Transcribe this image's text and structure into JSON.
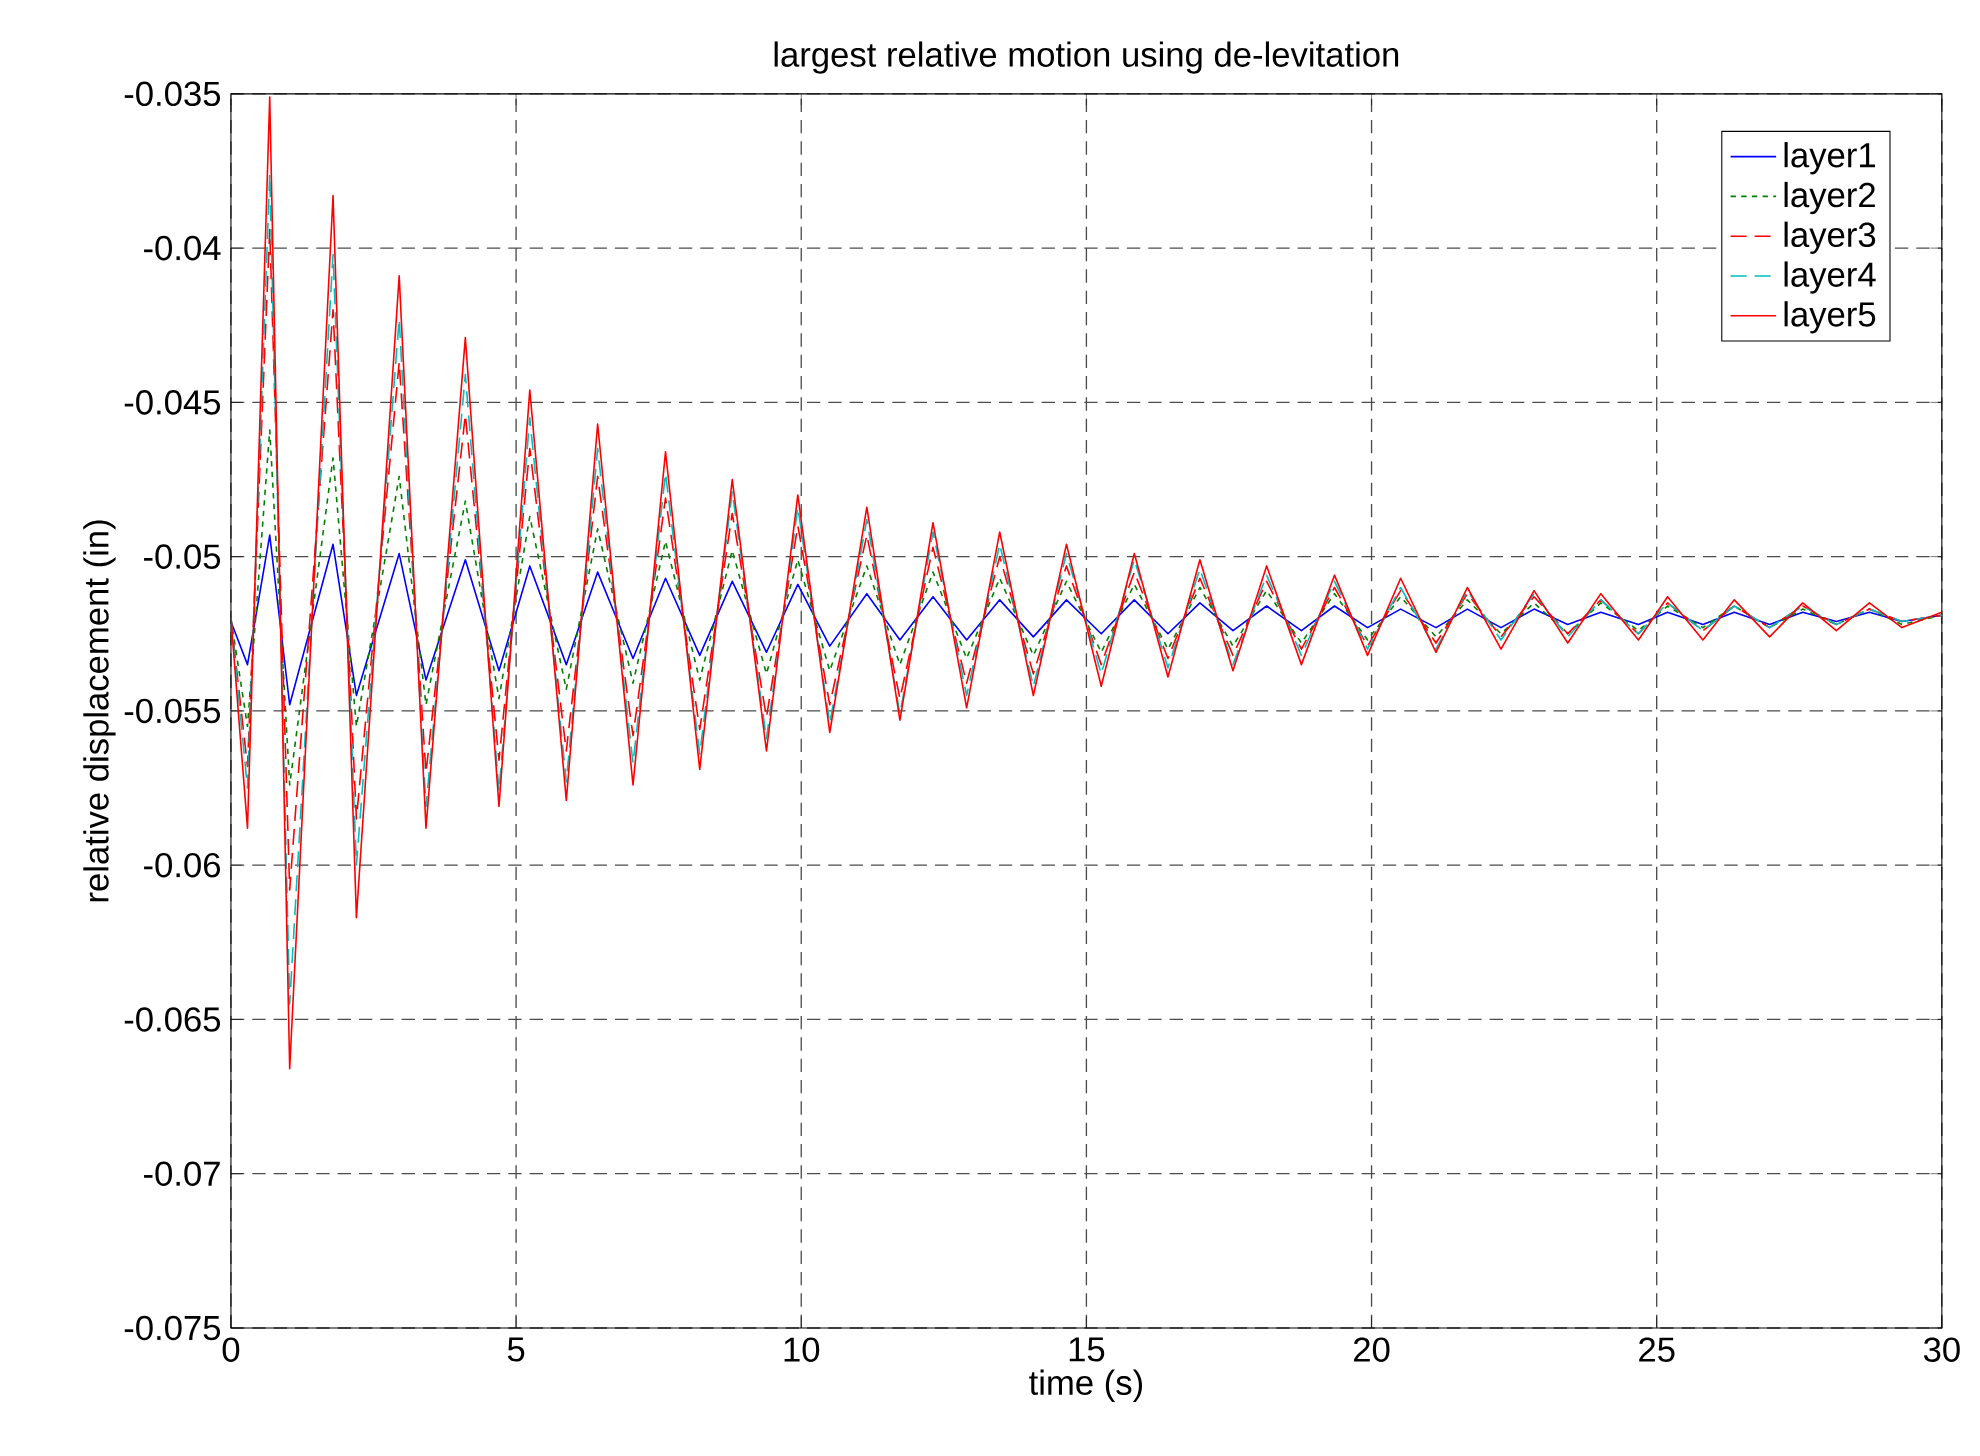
{
  "chart_data": {
    "type": "line",
    "title": "largest relative motion using de-levitation",
    "xlabel": "time (s)",
    "ylabel": "relative displacement (in)",
    "x": [
      0,
      0.29,
      0.68,
      1.03,
      1.79,
      2.2,
      2.95,
      3.42,
      4.11,
      4.7,
      5.24,
      5.88,
      6.43,
      7.05,
      7.62,
      8.22,
      8.79,
      9.39,
      9.94,
      10.5,
      11.15,
      11.73,
      12.31,
      12.9,
      13.48,
      14.07,
      14.65,
      15.26,
      15.84,
      16.43,
      16.99,
      17.57,
      18.16,
      18.77,
      19.35,
      19.93,
      20.51,
      21.13,
      21.68,
      22.27,
      22.85,
      23.44,
      24.02,
      24.68,
      25.19,
      25.81,
      26.36,
      26.98,
      27.56,
      28.15,
      28.73,
      29.3,
      30
    ],
    "series": [
      {
        "name": "layer1",
        "color": "#0000ff",
        "line_style": "solid",
        "values": [
          -0.0521,
          -0.0535,
          -0.0493,
          -0.0548,
          -0.0496,
          -0.0545,
          -0.0499,
          -0.054,
          -0.0501,
          -0.0537,
          -0.0503,
          -0.0535,
          -0.0505,
          -0.0533,
          -0.0507,
          -0.0532,
          -0.0508,
          -0.0531,
          -0.0509,
          -0.0529,
          -0.0512,
          -0.0527,
          -0.0513,
          -0.0527,
          -0.0514,
          -0.0526,
          -0.0514,
          -0.0525,
          -0.0514,
          -0.0525,
          -0.0515,
          -0.0524,
          -0.0516,
          -0.0524,
          -0.0516,
          -0.0523,
          -0.0517,
          -0.0523,
          -0.0517,
          -0.0523,
          -0.0517,
          -0.0522,
          -0.0518,
          -0.0522,
          -0.0518,
          -0.0522,
          -0.0518,
          -0.0522,
          -0.0518,
          -0.0521,
          -0.0518,
          -0.0521,
          -0.0519
        ]
      },
      {
        "name": "layer2",
        "color": "#008000",
        "line_style": "dotted",
        "values": [
          -0.052,
          -0.0555,
          -0.0459,
          -0.0574,
          -0.0468,
          -0.0555,
          -0.0474,
          -0.0548,
          -0.0482,
          -0.0546,
          -0.0487,
          -0.0543,
          -0.0491,
          -0.0541,
          -0.0495,
          -0.054,
          -0.0498,
          -0.0538,
          -0.0501,
          -0.0537,
          -0.0503,
          -0.0535,
          -0.0505,
          -0.0533,
          -0.0507,
          -0.0532,
          -0.0508,
          -0.0531,
          -0.0509,
          -0.053,
          -0.051,
          -0.0529,
          -0.0511,
          -0.0528,
          -0.0512,
          -0.0527,
          -0.0513,
          -0.0526,
          -0.0514,
          -0.0525,
          -0.0515,
          -0.0525,
          -0.0515,
          -0.0524,
          -0.0516,
          -0.0523,
          -0.0516,
          -0.0523,
          -0.0517,
          -0.0522,
          -0.0517,
          -0.0522,
          -0.0519
        ]
      },
      {
        "name": "layer3",
        "color": "#ff0000",
        "line_style": "dashed",
        "values": [
          -0.052,
          -0.0568,
          -0.0394,
          -0.0608,
          -0.042,
          -0.0585,
          -0.0437,
          -0.057,
          -0.0454,
          -0.0566,
          -0.0465,
          -0.0563,
          -0.0474,
          -0.0558,
          -0.0481,
          -0.0556,
          -0.0486,
          -0.0552,
          -0.049,
          -0.0548,
          -0.0493,
          -0.0546,
          -0.0497,
          -0.0541,
          -0.05,
          -0.0538,
          -0.0503,
          -0.0535,
          -0.0505,
          -0.0533,
          -0.0507,
          -0.0532,
          -0.0508,
          -0.053,
          -0.051,
          -0.0529,
          -0.0511,
          -0.0528,
          -0.0512,
          -0.0526,
          -0.0513,
          -0.0525,
          -0.0514,
          -0.0525,
          -0.0515,
          -0.0524,
          -0.0516,
          -0.0523,
          -0.0516,
          -0.0522,
          -0.0517,
          -0.0521,
          -0.0519
        ]
      },
      {
        "name": "layer4",
        "color": "#00bfbf",
        "line_style": "dashed",
        "values": [
          -0.052,
          -0.0575,
          -0.0376,
          -0.0645,
          -0.0402,
          -0.06,
          -0.0423,
          -0.0581,
          -0.0441,
          -0.0576,
          -0.0455,
          -0.0573,
          -0.0465,
          -0.0567,
          -0.0473,
          -0.0564,
          -0.0479,
          -0.0559,
          -0.0484,
          -0.0554,
          -0.0488,
          -0.0551,
          -0.0492,
          -0.0545,
          -0.0496,
          -0.0542,
          -0.0499,
          -0.0538,
          -0.0501,
          -0.0536,
          -0.0504,
          -0.0535,
          -0.0506,
          -0.0532,
          -0.0508,
          -0.053,
          -0.051,
          -0.053,
          -0.0511,
          -0.0527,
          -0.0512,
          -0.0526,
          -0.0514,
          -0.0525,
          -0.0515,
          -0.0524,
          -0.0516,
          -0.0523,
          -0.0516,
          -0.0522,
          -0.0517,
          -0.0521,
          -0.0519
        ]
      },
      {
        "name": "layer5",
        "color": "#ff0000",
        "line_style": "solid",
        "values": [
          -0.052,
          -0.0588,
          -0.0351,
          -0.0666,
          -0.0383,
          -0.0617,
          -0.0409,
          -0.0588,
          -0.0429,
          -0.0581,
          -0.0446,
          -0.0579,
          -0.0457,
          -0.0574,
          -0.0466,
          -0.0569,
          -0.0475,
          -0.0563,
          -0.048,
          -0.0557,
          -0.0484,
          -0.0553,
          -0.0489,
          -0.0549,
          -0.0492,
          -0.0545,
          -0.0496,
          -0.0542,
          -0.0499,
          -0.0539,
          -0.0501,
          -0.0537,
          -0.0503,
          -0.0535,
          -0.0506,
          -0.0532,
          -0.0507,
          -0.0531,
          -0.051,
          -0.053,
          -0.0511,
          -0.0528,
          -0.0512,
          -0.0527,
          -0.0513,
          -0.0527,
          -0.0514,
          -0.0526,
          -0.0515,
          -0.0524,
          -0.0515,
          -0.0523,
          -0.0518
        ]
      }
    ],
    "xlim": [
      0,
      30
    ],
    "ylim": [
      -0.075,
      -0.035
    ],
    "xticks": [
      0,
      5,
      10,
      15,
      20,
      25,
      30
    ],
    "yticks": [
      -0.075,
      -0.07,
      -0.065,
      -0.06,
      -0.055,
      -0.05,
      -0.045,
      -0.04,
      -0.035
    ],
    "grid": true,
    "legend": "top right",
    "marker": "none"
  }
}
